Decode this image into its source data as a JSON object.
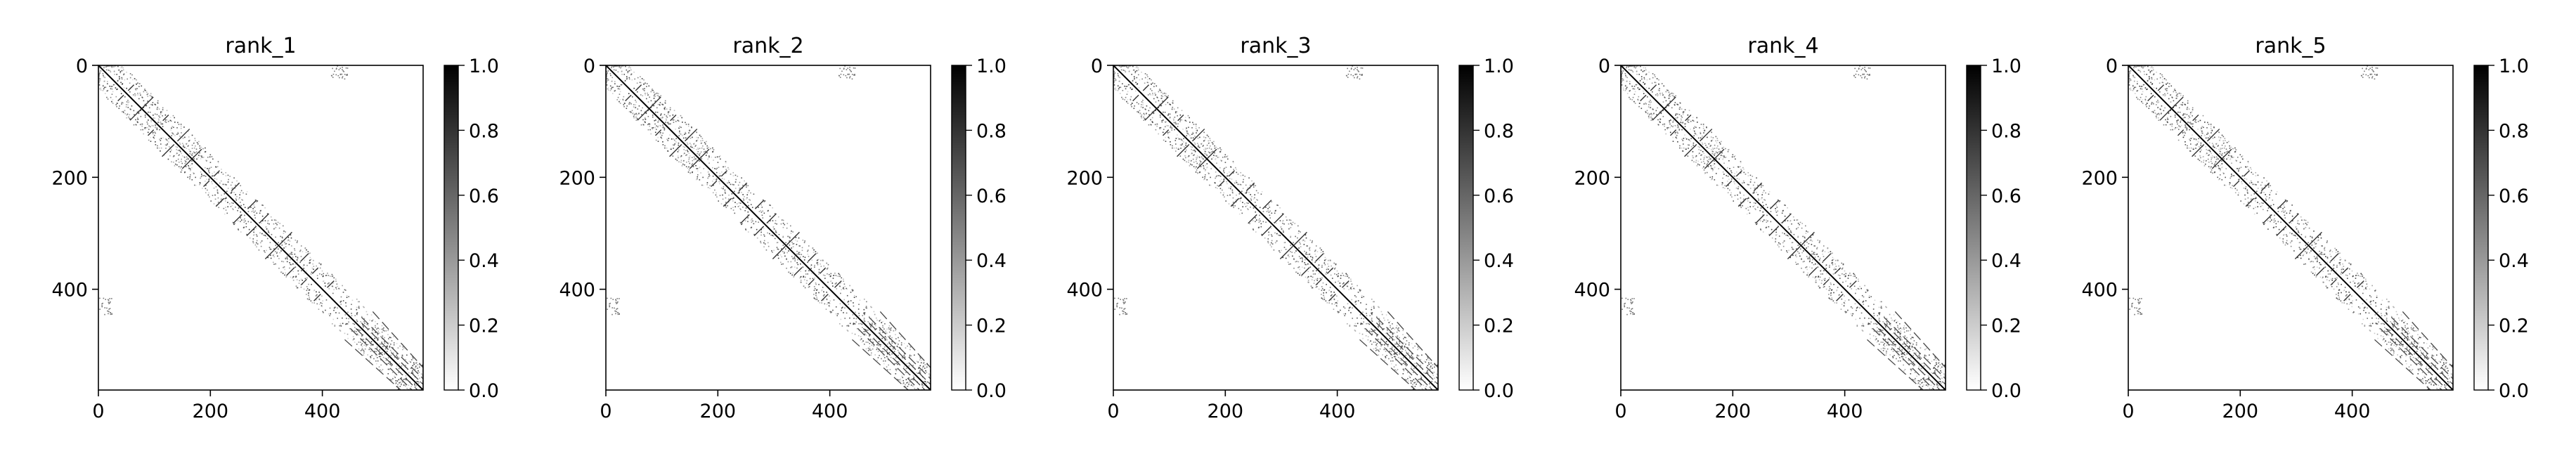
{
  "chart_data": [
    {
      "type": "heatmap",
      "title": "rank_1",
      "xlabel": "",
      "ylabel": "",
      "xlim": [
        0,
        580
      ],
      "ylim": [
        580,
        0
      ],
      "x_ticks": [
        "0",
        "200",
        "400"
      ],
      "y_ticks": [
        "0",
        "200",
        "400"
      ],
      "colorbar": {
        "label": "",
        "range": [
          0.0,
          1.0
        ],
        "ticks": [
          "0.0",
          "0.2",
          "0.4",
          "0.6",
          "0.8",
          "1.0"
        ],
        "colormap": "gray_r"
      },
      "grid": false,
      "description_values": "contact map: diagonal=1.0, sparse off-diagonal near-diagonal contacts, small cluster near (430,440) and (440,430)"
    },
    {
      "type": "heatmap",
      "title": "rank_2",
      "xlabel": "",
      "ylabel": "",
      "xlim": [
        0,
        580
      ],
      "ylim": [
        580,
        0
      ],
      "x_ticks": [
        "0",
        "200",
        "400"
      ],
      "y_ticks": [
        "0",
        "200",
        "400"
      ],
      "colorbar": {
        "label": "",
        "range": [
          0.0,
          1.0
        ],
        "ticks": [
          "0.0",
          "0.2",
          "0.4",
          "0.6",
          "0.8",
          "1.0"
        ],
        "colormap": "gray_r"
      },
      "grid": false
    },
    {
      "type": "heatmap",
      "title": "rank_3",
      "xlabel": "",
      "ylabel": "",
      "xlim": [
        0,
        580
      ],
      "ylim": [
        580,
        0
      ],
      "x_ticks": [
        "0",
        "200",
        "400"
      ],
      "y_ticks": [
        "0",
        "200",
        "400"
      ],
      "colorbar": {
        "label": "",
        "range": [
          0.0,
          1.0
        ],
        "ticks": [
          "0.0",
          "0.2",
          "0.4",
          "0.6",
          "0.8",
          "1.0"
        ],
        "colormap": "gray_r"
      },
      "grid": false
    },
    {
      "type": "heatmap",
      "title": "rank_4",
      "xlabel": "",
      "ylabel": "",
      "xlim": [
        0,
        580
      ],
      "ylim": [
        580,
        0
      ],
      "x_ticks": [
        "0",
        "200",
        "400"
      ],
      "y_ticks": [
        "0",
        "200",
        "400"
      ],
      "colorbar": {
        "label": "",
        "range": [
          0.0,
          1.0
        ],
        "ticks": [
          "0.0",
          "0.2",
          "0.4",
          "0.6",
          "0.8",
          "1.0"
        ],
        "colormap": "gray_r"
      },
      "grid": false
    },
    {
      "type": "heatmap",
      "title": "rank_5",
      "xlabel": "",
      "ylabel": "",
      "xlim": [
        0,
        580
      ],
      "ylim": [
        580,
        0
      ],
      "x_ticks": [
        "0",
        "200",
        "400"
      ],
      "y_ticks": [
        "0",
        "200",
        "400"
      ],
      "colorbar": {
        "label": "",
        "range": [
          0.0,
          1.0
        ],
        "ticks": [
          "0.0",
          "0.2",
          "0.4",
          "0.6",
          "0.8",
          "1.0"
        ],
        "colormap": "gray_r"
      },
      "grid": false
    }
  ],
  "colors": {
    "low": "#ffffff",
    "high": "#000000",
    "axis": "#000000"
  }
}
